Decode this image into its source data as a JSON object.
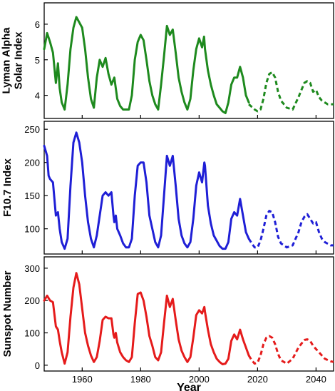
{
  "chart_data": {
    "type": "line",
    "xlabel": "Year",
    "xlim": [
      1947,
      2046
    ],
    "xticks": [
      1960,
      1980,
      2000,
      2020,
      2040
    ],
    "panels": [
      {
        "id": "lyman",
        "ylabel_lines": [
          "Lyman Alpha",
          "Solar Index"
        ],
        "ylim": [
          3.35,
          6.6
        ],
        "yticks": [
          4,
          5,
          6
        ],
        "color": "#1e8a1e",
        "observed": [
          [
            1947,
            5.3
          ],
          [
            1948,
            5.75
          ],
          [
            1949,
            5.5
          ],
          [
            1950,
            5.2
          ],
          [
            1951,
            4.35
          ],
          [
            1951.7,
            4.9
          ],
          [
            1952.3,
            4.2
          ],
          [
            1953,
            3.8
          ],
          [
            1954,
            3.6
          ],
          [
            1955,
            4.3
          ],
          [
            1956,
            5.3
          ],
          [
            1957,
            5.9
          ],
          [
            1958,
            6.2
          ],
          [
            1959,
            6.05
          ],
          [
            1960,
            5.9
          ],
          [
            1961,
            5.3
          ],
          [
            1962,
            4.5
          ],
          [
            1963,
            3.9
          ],
          [
            1964,
            3.65
          ],
          [
            1965,
            4.5
          ],
          [
            1966,
            5.0
          ],
          [
            1967,
            4.8
          ],
          [
            1968,
            5.05
          ],
          [
            1969,
            4.6
          ],
          [
            1970,
            4.3
          ],
          [
            1971,
            4.5
          ],
          [
            1972,
            3.9
          ],
          [
            1973,
            3.7
          ],
          [
            1974,
            3.6
          ],
          [
            1975,
            3.6
          ],
          [
            1976,
            3.6
          ],
          [
            1977,
            4.0
          ],
          [
            1978,
            5.0
          ],
          [
            1979,
            5.5
          ],
          [
            1980,
            5.7
          ],
          [
            1981,
            5.55
          ],
          [
            1982,
            5.0
          ],
          [
            1983,
            4.4
          ],
          [
            1984,
            4.0
          ],
          [
            1985,
            3.75
          ],
          [
            1986,
            3.6
          ],
          [
            1987,
            4.3
          ],
          [
            1988,
            5.1
          ],
          [
            1989,
            5.95
          ],
          [
            1990,
            5.7
          ],
          [
            1991,
            5.85
          ],
          [
            1992,
            5.2
          ],
          [
            1993,
            4.5
          ],
          [
            1994,
            4.1
          ],
          [
            1995,
            3.8
          ],
          [
            1996,
            3.6
          ],
          [
            1997,
            3.9
          ],
          [
            1998,
            4.7
          ],
          [
            1999,
            5.3
          ],
          [
            2000,
            5.6
          ],
          [
            2001,
            5.35
          ],
          [
            2001.7,
            5.65
          ],
          [
            2002,
            5.3
          ],
          [
            2003,
            4.7
          ],
          [
            2004,
            4.3
          ],
          [
            2005,
            4.0
          ],
          [
            2006,
            3.75
          ],
          [
            2007,
            3.65
          ],
          [
            2008,
            3.55
          ],
          [
            2009,
            3.5
          ],
          [
            2010,
            3.8
          ],
          [
            2011,
            4.3
          ],
          [
            2012,
            4.5
          ],
          [
            2013,
            4.5
          ],
          [
            2014,
            4.8
          ],
          [
            2015,
            4.5
          ],
          [
            2016,
            4.0
          ],
          [
            2017,
            3.8
          ]
        ],
        "predicted": [
          [
            2017,
            3.75
          ],
          [
            2019,
            3.6
          ],
          [
            2020,
            3.55
          ],
          [
            2021,
            3.6
          ],
          [
            2022,
            3.9
          ],
          [
            2023,
            4.35
          ],
          [
            2024,
            4.6
          ],
          [
            2025,
            4.65
          ],
          [
            2026,
            4.5
          ],
          [
            2027,
            4.1
          ],
          [
            2028,
            3.85
          ],
          [
            2030,
            3.65
          ],
          [
            2032,
            3.6
          ],
          [
            2034,
            3.95
          ],
          [
            2036,
            4.35
          ],
          [
            2037,
            4.4
          ],
          [
            2038,
            4.35
          ],
          [
            2039,
            4.1
          ],
          [
            2040,
            4.15
          ],
          [
            2041,
            3.95
          ],
          [
            2042,
            3.85
          ],
          [
            2044,
            3.75
          ],
          [
            2046,
            3.75
          ]
        ]
      },
      {
        "id": "f107",
        "ylabel_lines": [
          "F10.7 Index"
        ],
        "ylim": [
          62,
          262
        ],
        "yticks": [
          100,
          150,
          200,
          250
        ],
        "color": "#1f1fd6",
        "observed": [
          [
            1947,
            225
          ],
          [
            1948,
            210
          ],
          [
            1948.5,
            180
          ],
          [
            1949,
            175
          ],
          [
            1950,
            170
          ],
          [
            1951,
            120
          ],
          [
            1951.7,
            125
          ],
          [
            1952.3,
            100
          ],
          [
            1953,
            80
          ],
          [
            1954,
            70
          ],
          [
            1955,
            85
          ],
          [
            1956,
            165
          ],
          [
            1957,
            230
          ],
          [
            1958,
            245
          ],
          [
            1959,
            230
          ],
          [
            1960,
            200
          ],
          [
            1961,
            150
          ],
          [
            1962,
            110
          ],
          [
            1963,
            85
          ],
          [
            1964,
            72
          ],
          [
            1965,
            90
          ],
          [
            1966,
            120
          ],
          [
            1967,
            150
          ],
          [
            1968,
            155
          ],
          [
            1969,
            150
          ],
          [
            1970,
            155
          ],
          [
            1970.7,
            120
          ],
          [
            1971,
            110
          ],
          [
            1971.5,
            120
          ],
          [
            1972,
            100
          ],
          [
            1973,
            90
          ],
          [
            1974,
            78
          ],
          [
            1975,
            72
          ],
          [
            1976,
            72
          ],
          [
            1977,
            85
          ],
          [
            1978,
            150
          ],
          [
            1979,
            195
          ],
          [
            1980,
            200
          ],
          [
            1981,
            200
          ],
          [
            1982,
            170
          ],
          [
            1983,
            120
          ],
          [
            1984,
            100
          ],
          [
            1985,
            80
          ],
          [
            1986,
            72
          ],
          [
            1987,
            90
          ],
          [
            1988,
            150
          ],
          [
            1989,
            210
          ],
          [
            1990,
            195
          ],
          [
            1991,
            210
          ],
          [
            1992,
            165
          ],
          [
            1993,
            115
          ],
          [
            1994,
            90
          ],
          [
            1995,
            78
          ],
          [
            1996,
            72
          ],
          [
            1997,
            80
          ],
          [
            1998,
            115
          ],
          [
            1999,
            165
          ],
          [
            2000,
            185
          ],
          [
            2001,
            170
          ],
          [
            2001.8,
            200
          ],
          [
            2002,
            195
          ],
          [
            2003,
            135
          ],
          [
            2004,
            108
          ],
          [
            2005,
            90
          ],
          [
            2006,
            82
          ],
          [
            2007,
            74
          ],
          [
            2008,
            70
          ],
          [
            2009,
            70
          ],
          [
            2010,
            80
          ],
          [
            2011,
            115
          ],
          [
            2012,
            125
          ],
          [
            2013,
            120
          ],
          [
            2014,
            145
          ],
          [
            2015,
            120
          ],
          [
            2016,
            95
          ],
          [
            2017,
            85
          ]
        ],
        "predicted": [
          [
            2017,
            85
          ],
          [
            2018,
            78
          ],
          [
            2019,
            72
          ],
          [
            2020,
            72
          ],
          [
            2021,
            82
          ],
          [
            2022,
            100
          ],
          [
            2023,
            120
          ],
          [
            2024,
            127
          ],
          [
            2025,
            125
          ],
          [
            2026,
            110
          ],
          [
            2027,
            88
          ],
          [
            2028,
            78
          ],
          [
            2030,
            72
          ],
          [
            2032,
            75
          ],
          [
            2034,
            95
          ],
          [
            2035,
            110
          ],
          [
            2036,
            118
          ],
          [
            2037,
            122
          ],
          [
            2038,
            115
          ],
          [
            2039,
            108
          ],
          [
            2040,
            110
          ],
          [
            2041,
            95
          ],
          [
            2042,
            85
          ],
          [
            2043,
            80
          ],
          [
            2045,
            75
          ],
          [
            2046,
            75
          ]
        ]
      },
      {
        "id": "ssn",
        "ylabel_lines": [
          "Sunspot Number"
        ],
        "ylim": [
          -18,
          335
        ],
        "yticks": [
          0,
          100,
          200,
          300
        ],
        "color": "#e51b1b",
        "observed": [
          [
            1947,
            200
          ],
          [
            1948,
            215
          ],
          [
            1949,
            200
          ],
          [
            1950,
            195
          ],
          [
            1951,
            120
          ],
          [
            1951.7,
            110
          ],
          [
            1952.3,
            75
          ],
          [
            1953,
            40
          ],
          [
            1954,
            5
          ],
          [
            1955,
            40
          ],
          [
            1956,
            150
          ],
          [
            1957,
            240
          ],
          [
            1958,
            285
          ],
          [
            1959,
            250
          ],
          [
            1960,
            175
          ],
          [
            1961,
            100
          ],
          [
            1962,
            60
          ],
          [
            1963,
            30
          ],
          [
            1964,
            10
          ],
          [
            1965,
            25
          ],
          [
            1966,
            75
          ],
          [
            1967,
            140
          ],
          [
            1968,
            150
          ],
          [
            1969,
            145
          ],
          [
            1970,
            145
          ],
          [
            1970.7,
            95
          ],
          [
            1971,
            85
          ],
          [
            1971.5,
            100
          ],
          [
            1972,
            70
          ],
          [
            1973,
            40
          ],
          [
            1974,
            25
          ],
          [
            1975,
            15
          ],
          [
            1976,
            10
          ],
          [
            1977,
            25
          ],
          [
            1978,
            130
          ],
          [
            1979,
            220
          ],
          [
            1980,
            225
          ],
          [
            1981,
            200
          ],
          [
            1982,
            150
          ],
          [
            1983,
            90
          ],
          [
            1984,
            60
          ],
          [
            1985,
            25
          ],
          [
            1986,
            15
          ],
          [
            1987,
            40
          ],
          [
            1988,
            130
          ],
          [
            1989,
            215
          ],
          [
            1990,
            180
          ],
          [
            1991,
            205
          ],
          [
            1992,
            140
          ],
          [
            1993,
            80
          ],
          [
            1994,
            45
          ],
          [
            1995,
            25
          ],
          [
            1996,
            10
          ],
          [
            1997,
            25
          ],
          [
            1998,
            85
          ],
          [
            1999,
            155
          ],
          [
            2000,
            170
          ],
          [
            2001,
            160
          ],
          [
            2001.8,
            180
          ],
          [
            2002,
            165
          ],
          [
            2003,
            110
          ],
          [
            2004,
            65
          ],
          [
            2005,
            40
          ],
          [
            2006,
            20
          ],
          [
            2007,
            10
          ],
          [
            2008,
            3
          ],
          [
            2009,
            5
          ],
          [
            2010,
            20
          ],
          [
            2011,
            75
          ],
          [
            2012,
            95
          ],
          [
            2013,
            80
          ],
          [
            2014,
            110
          ],
          [
            2015,
            80
          ],
          [
            2016,
            55
          ],
          [
            2017,
            30
          ]
        ],
        "predicted": [
          [
            2017,
            30
          ],
          [
            2018,
            15
          ],
          [
            2019,
            5
          ],
          [
            2020,
            8
          ],
          [
            2021,
            30
          ],
          [
            2022,
            65
          ],
          [
            2023,
            85
          ],
          [
            2024,
            90
          ],
          [
            2025,
            85
          ],
          [
            2026,
            65
          ],
          [
            2027,
            35
          ],
          [
            2028,
            15
          ],
          [
            2030,
            5
          ],
          [
            2032,
            20
          ],
          [
            2034,
            55
          ],
          [
            2036,
            78
          ],
          [
            2037,
            80
          ],
          [
            2038,
            75
          ],
          [
            2039,
            60
          ],
          [
            2040,
            50
          ],
          [
            2041,
            40
          ],
          [
            2042,
            30
          ],
          [
            2043,
            20
          ],
          [
            2045,
            12
          ],
          [
            2046,
            10
          ]
        ]
      }
    ]
  }
}
